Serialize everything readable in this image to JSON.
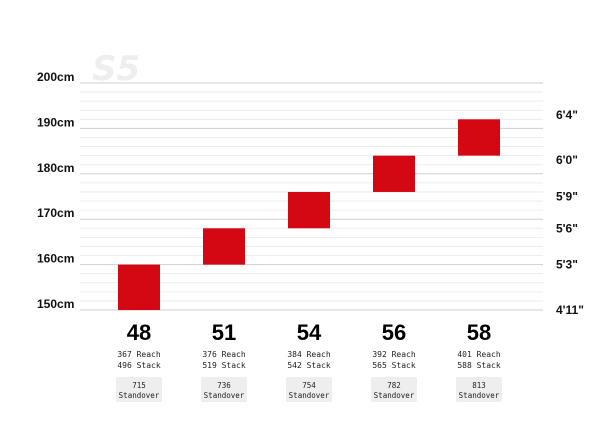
{
  "logo_text": "S5",
  "colors": {
    "bar": "#d40812",
    "grid_major": "#cfcfcf",
    "grid_minor": "#e8e8e8",
    "badge": "#eeeeee"
  },
  "chart_data": {
    "type": "bar",
    "y_unit": "cm",
    "ylim": [
      150,
      200
    ],
    "left_ticks": [
      {
        "value": 200,
        "label": "200cm"
      },
      {
        "value": 190,
        "label": "190cm"
      },
      {
        "value": 180,
        "label": "180cm"
      },
      {
        "value": 170,
        "label": "170cm"
      },
      {
        "value": 160,
        "label": "160cm"
      },
      {
        "value": 150,
        "label": "150cm"
      }
    ],
    "right_ticks": [
      {
        "value": 193,
        "label": "6'4\""
      },
      {
        "value": 183,
        "label": "6'0\""
      },
      {
        "value": 175,
        "label": "5'9\""
      },
      {
        "value": 168,
        "label": "5'6\""
      },
      {
        "value": 160,
        "label": "5'3\""
      },
      {
        "value": 150,
        "label": "4'11\""
      }
    ],
    "sizes": [
      {
        "label": "48",
        "height_min": 150,
        "height_max": 160,
        "reach": "367 Reach",
        "stack": "496 Stack",
        "standover_value": "715",
        "standover_label": "Standover"
      },
      {
        "label": "51",
        "height_min": 160,
        "height_max": 168,
        "reach": "376 Reach",
        "stack": "519 Stack",
        "standover_value": "736",
        "standover_label": "Standover"
      },
      {
        "label": "54",
        "height_min": 168,
        "height_max": 176,
        "reach": "384 Reach",
        "stack": "542 Stack",
        "standover_value": "754",
        "standover_label": "Standover"
      },
      {
        "label": "56",
        "height_min": 176,
        "height_max": 184,
        "reach": "392 Reach",
        "stack": "565 Stack",
        "standover_value": "782",
        "standover_label": "Standover"
      },
      {
        "label": "58",
        "height_min": 184,
        "height_max": 192,
        "reach": "401 Reach",
        "stack": "588 Stack",
        "standover_value": "813",
        "standover_label": "Standover"
      }
    ]
  }
}
